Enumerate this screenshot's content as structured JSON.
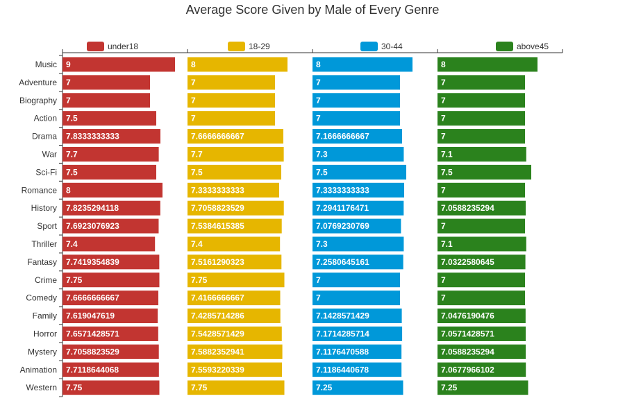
{
  "chart_data": {
    "type": "bar",
    "orientation": "horizontal",
    "layout": "small-multiples",
    "title": "Average Score Given by Male of Every Genre",
    "categories": [
      "Music",
      "Adventure",
      "Biography",
      "Action",
      "Drama",
      "War",
      "Sci-Fi",
      "Romance",
      "History",
      "Sport",
      "Thriller",
      "Fantasy",
      "Crime",
      "Comedy",
      "Family",
      "Horror",
      "Mystery",
      "Animation",
      "Western"
    ],
    "xlim": [
      0,
      9
    ],
    "grid": false,
    "legend_position": "top",
    "series": [
      {
        "name": "under18",
        "color": "#c23531",
        "values": [
          9,
          7,
          7,
          7.5,
          7.8333333333,
          7.7,
          7.5,
          8,
          7.8235294118,
          7.6923076923,
          7.4,
          7.7419354839,
          7.75,
          7.6666666667,
          7.619047619,
          7.6571428571,
          7.7058823529,
          7.7118644068,
          7.75
        ]
      },
      {
        "name": "18-29",
        "color": "#e6b600",
        "values": [
          8,
          7,
          7,
          7,
          7.6666666667,
          7.7,
          7.5,
          7.3333333333,
          7.7058823529,
          7.5384615385,
          7.4,
          7.5161290323,
          7.75,
          7.4166666667,
          7.4285714286,
          7.5428571429,
          7.5882352941,
          7.5593220339,
          7.75
        ]
      },
      {
        "name": "30-44",
        "color": "#0098d9",
        "values": [
          8,
          7,
          7,
          7,
          7.1666666667,
          7.3,
          7.5,
          7.3333333333,
          7.2941176471,
          7.0769230769,
          7.3,
          7.2580645161,
          7,
          7,
          7.1428571429,
          7.1714285714,
          7.1176470588,
          7.1186440678,
          7.25
        ]
      },
      {
        "name": "above45",
        "color": "#2b821d",
        "values": [
          8,
          7,
          7,
          7,
          7,
          7.1,
          7.5,
          7,
          7.0588235294,
          7,
          7.1,
          7.0322580645,
          7,
          7,
          7.0476190476,
          7.0571428571,
          7.0588235294,
          7.0677966102,
          7.25
        ]
      }
    ]
  }
}
